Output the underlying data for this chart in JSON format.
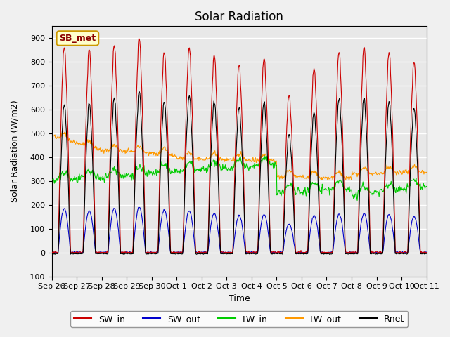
{
  "title": "Solar Radiation",
  "xlabel": "Time",
  "ylabel": "Solar Radiation (W/m2)",
  "ylim": [
    -100,
    950
  ],
  "yticks": [
    -100,
    0,
    100,
    200,
    300,
    400,
    500,
    600,
    700,
    800,
    900
  ],
  "station_label": "SB_met",
  "colors": {
    "SW_in": "#cc0000",
    "SW_out": "#0000cc",
    "LW_in": "#00cc00",
    "LW_out": "#ff9900",
    "Rnet": "#000000"
  },
  "legend_entries": [
    "SW_in",
    "SW_out",
    "LW_in",
    "LW_out",
    "Rnet"
  ],
  "x_tick_labels": [
    "Sep 26",
    "Sep 27",
    "Sep 28",
    "Sep 29",
    "Sep 30",
    "Oct 1",
    "Oct 2",
    "Oct 3",
    "Oct 4",
    "Oct 5",
    "Oct 6",
    "Oct 7",
    "Oct 8",
    "Oct 9",
    "Oct 10",
    "Oct 11"
  ],
  "background_color": "#e8e8e8",
  "grid_color": "#ffffff"
}
